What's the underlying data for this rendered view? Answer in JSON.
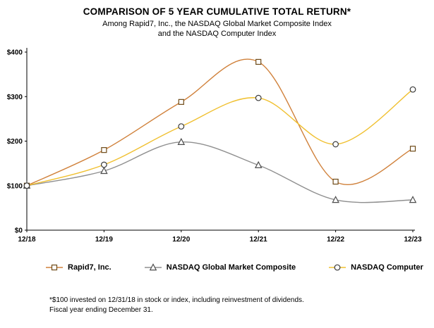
{
  "header": {
    "title": "COMPARISON OF 5 YEAR CUMULATIVE TOTAL RETURN*",
    "subtitle_line1": "Among Rapid7, Inc., the NASDAQ Global Market Composite Index",
    "subtitle_line2": "and the NASDAQ Computer Index"
  },
  "chart_data": {
    "type": "line",
    "title": "COMPARISON OF 5 YEAR CUMULATIVE TOTAL RETURN*",
    "x": [
      "12/18",
      "12/19",
      "12/20",
      "12/21",
      "12/22",
      "12/23"
    ],
    "series": [
      {
        "name": "Rapid7, Inc.",
        "marker": "square",
        "color": "#D0813B",
        "marker_color": "#6E4A17",
        "values": [
          100,
          180,
          288,
          378,
          109,
          183
        ]
      },
      {
        "name": "NASDAQ Global Market Composite",
        "marker": "triangle",
        "color": "#8F8F8F",
        "marker_color": "#4D4D4D",
        "values": [
          100,
          133,
          198,
          146,
          68,
          68
        ]
      },
      {
        "name": "NASDAQ Computer",
        "marker": "circle",
        "color": "#F0C030",
        "marker_color": "#3A3A3A",
        "values": [
          100,
          147,
          233,
          297,
          193,
          316
        ]
      }
    ],
    "ylim": [
      0,
      400
    ],
    "yticks": [
      0,
      100,
      200,
      300,
      400
    ],
    "ytick_labels": [
      "$0",
      "$100",
      "$200",
      "$300",
      "$400"
    ],
    "xlabel": "",
    "ylabel": "",
    "grid": false,
    "smooth": true,
    "legend_position": "bottom"
  },
  "footnote": {
    "line1": "*$100 invested on 12/31/18 in stock or index, including reinvestment of dividends.",
    "line2": "Fiscal year ending December 31."
  }
}
